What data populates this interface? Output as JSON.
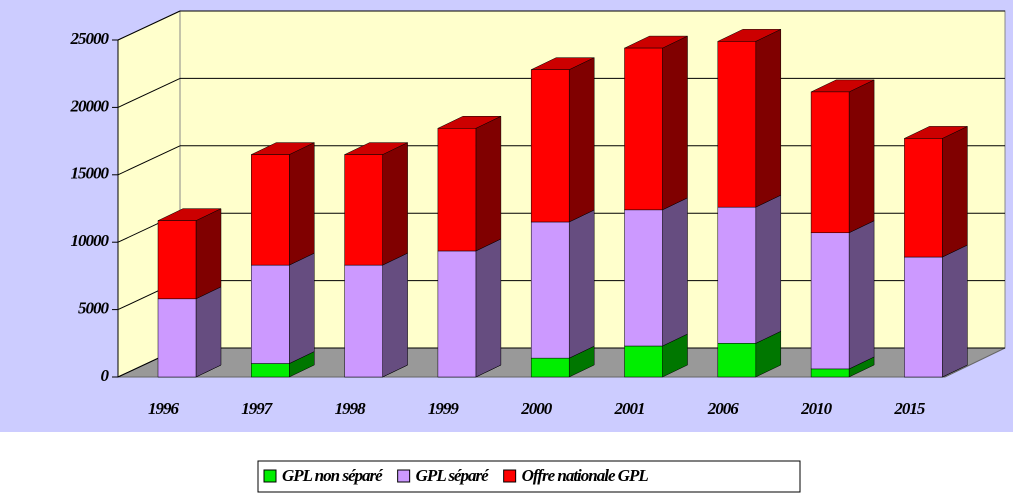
{
  "chart_data": {
    "type": "bar3d_stacked",
    "categories": [
      "1996",
      "1997",
      "1998",
      "1999",
      "2000",
      "2001",
      "2006",
      "2010",
      "2015"
    ],
    "series": [
      {
        "name": "GPL non séparé",
        "color": "#00ee00",
        "values": [
          0,
          1000,
          0,
          0,
          1400,
          2300,
          2500,
          600,
          0
        ]
      },
      {
        "name": "GPL séparé",
        "color": "#cc99ff",
        "values": [
          5800,
          7300,
          8300,
          9350,
          10100,
          10100,
          10100,
          10100,
          8900
        ]
      },
      {
        "name": "Offre nationale GPL",
        "color": "#ff0000",
        "values": [
          5800,
          8200,
          8200,
          9100,
          11300,
          12000,
          12300,
          10450,
          8800
        ]
      }
    ],
    "ylim": [
      0,
      25000
    ],
    "yticks": [
      0,
      5000,
      10000,
      15000,
      20000,
      25000
    ],
    "grid": true,
    "legend": "bottom"
  }
}
